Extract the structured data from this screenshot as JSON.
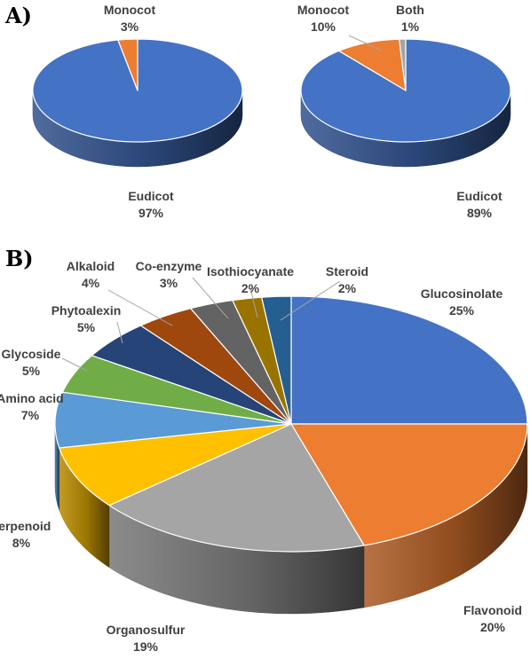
{
  "panels": [
    {
      "label": "A)"
    },
    {
      "label": "B)"
    }
  ],
  "chart_data": [
    {
      "type": "pie",
      "title": "",
      "categories": [
        "Eudicot",
        "Monocot"
      ],
      "values": [
        97,
        3
      ],
      "value_labels": [
        "97%",
        "3%"
      ],
      "colors": [
        "#4472C4",
        "#ED7D31"
      ]
    },
    {
      "type": "pie",
      "title": "",
      "categories": [
        "Eudicot",
        "Monocot",
        "Both"
      ],
      "values": [
        89,
        10,
        1
      ],
      "value_labels": [
        "89%",
        "10%",
        "1%"
      ],
      "colors": [
        "#4472C4",
        "#ED7D31",
        "#A5A5A5"
      ]
    },
    {
      "type": "pie",
      "title": "",
      "categories": [
        "Glucosinolate",
        "Flavonoid",
        "Organosulfur",
        "Terpenoid",
        "Amino acid",
        "Glycoside",
        "Phytoalexin",
        "Alkaloid",
        "Co-enzyme",
        "Isothiocyanate",
        "Steroid"
      ],
      "values": [
        25,
        20,
        19,
        8,
        7,
        5,
        5,
        4,
        3,
        2,
        2
      ],
      "value_labels": [
        "25%",
        "20%",
        "19%",
        "8%",
        "7%",
        "5%",
        "5%",
        "4%",
        "3%",
        "2%",
        "2%"
      ],
      "colors": [
        "#4472C4",
        "#ED7D31",
        "#A5A5A5",
        "#FFC000",
        "#5B9BD5",
        "#70AD47",
        "#264478",
        "#9E480E",
        "#636363",
        "#997300",
        "#255E91"
      ]
    }
  ]
}
